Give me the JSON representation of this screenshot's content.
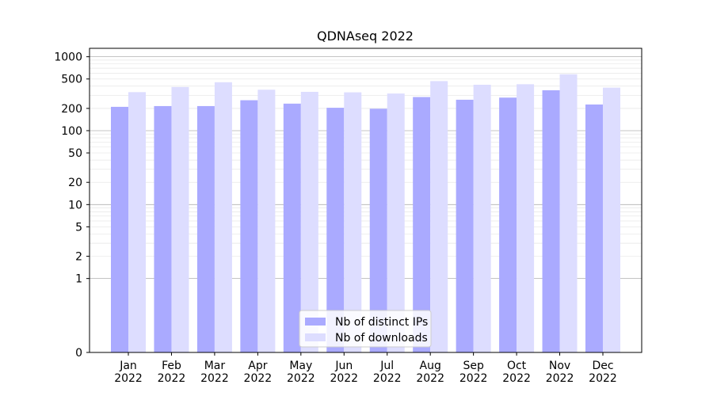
{
  "chart_data": {
    "type": "bar",
    "title": "QDNAseq 2022",
    "xlabel": "",
    "ylabel": "",
    "y_scale": "symlog",
    "ylim": [
      0,
      1300
    ],
    "y_ticks": [
      0,
      1,
      2,
      5,
      10,
      20,
      50,
      100,
      200,
      500,
      1000
    ],
    "grid": true,
    "legend_position": "bottom-center",
    "categories": [
      "Jan\n2022",
      "Feb\n2022",
      "Mar\n2022",
      "Apr\n2022",
      "May\n2022",
      "Jun\n2022",
      "Jul\n2022",
      "Aug\n2022",
      "Sep\n2022",
      "Oct\n2022",
      "Nov\n2022",
      "Dec\n2022"
    ],
    "series": [
      {
        "name": "Nb of distinct IPs",
        "color": "#aaaaff",
        "values": [
          210,
          215,
          215,
          258,
          232,
          204,
          198,
          285,
          262,
          280,
          352,
          226
        ]
      },
      {
        "name": "Nb of downloads",
        "color": "#ddddff",
        "values": [
          332,
          390,
          452,
          358,
          335,
          330,
          318,
          468,
          418,
          425,
          580,
          382
        ]
      }
    ]
  }
}
